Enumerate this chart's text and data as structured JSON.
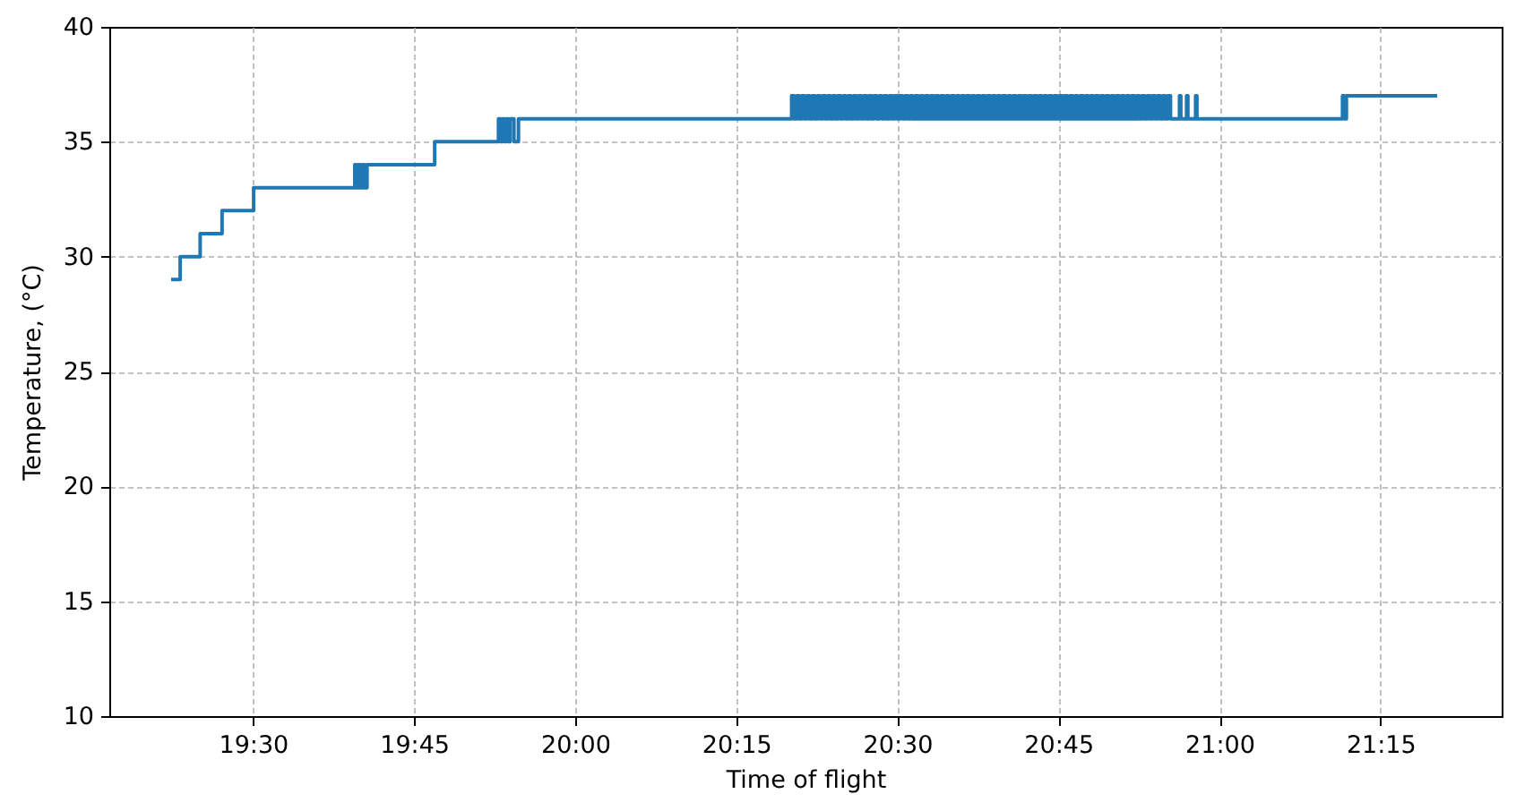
{
  "chart_data": {
    "type": "step",
    "xlabel": "Time of flight",
    "ylabel": "Temperature, (°C)",
    "xlim": [
      19.277,
      21.438
    ],
    "ylim": [
      10,
      40
    ],
    "xticks": [
      {
        "value": 19.5,
        "label": "19:30"
      },
      {
        "value": 19.75,
        "label": "19:45"
      },
      {
        "value": 20,
        "label": "20:00"
      },
      {
        "value": 20.25,
        "label": "20:15"
      },
      {
        "value": 20.5,
        "label": "20:30"
      },
      {
        "value": 20.75,
        "label": "20:45"
      },
      {
        "value": 21,
        "label": "21:00"
      },
      {
        "value": 21.25,
        "label": "21:15"
      }
    ],
    "yticks": [
      10,
      15,
      20,
      25,
      30,
      35,
      40
    ],
    "grid": true,
    "series": [
      {
        "color": "#1f77b4",
        "x": [
          19.373,
          19.387,
          19.418,
          19.452,
          19.501,
          19.658,
          19.661,
          19.664,
          19.667,
          19.67,
          19.673,
          19.677,
          19.782,
          19.881,
          19.884,
          19.887,
          19.89,
          19.893,
          19.896,
          19.899,
          19.905,
          19.912,
          20.336,
          20.34,
          20.344,
          20.348,
          20.352,
          20.356,
          20.36,
          20.364,
          20.368,
          20.372,
          20.376,
          20.38,
          20.384,
          20.388,
          20.392,
          20.396,
          20.4,
          20.404,
          20.408,
          20.412,
          20.416,
          20.42,
          20.424,
          20.428,
          20.432,
          20.436,
          20.44,
          20.444,
          20.448,
          20.452,
          20.456,
          20.46,
          20.464,
          20.468,
          20.472,
          20.476,
          20.48,
          20.484,
          20.488,
          20.492,
          20.496,
          20.5,
          20.504,
          20.508,
          20.512,
          20.516,
          20.52,
          20.524,
          20.528,
          20.532,
          20.536,
          20.54,
          20.544,
          20.548,
          20.552,
          20.556,
          20.56,
          20.564,
          20.568,
          20.572,
          20.576,
          20.58,
          20.584,
          20.588,
          20.592,
          20.596,
          20.6,
          20.604,
          20.608,
          20.612,
          20.616,
          20.62,
          20.624,
          20.628,
          20.632,
          20.636,
          20.64,
          20.644,
          20.648,
          20.652,
          20.656,
          20.66,
          20.664,
          20.668,
          20.672,
          20.676,
          20.68,
          20.684,
          20.688,
          20.692,
          20.696,
          20.7,
          20.704,
          20.708,
          20.712,
          20.716,
          20.72,
          20.724,
          20.728,
          20.732,
          20.736,
          20.74,
          20.744,
          20.748,
          20.752,
          20.756,
          20.76,
          20.764,
          20.768,
          20.772,
          20.776,
          20.78,
          20.784,
          20.788,
          20.792,
          20.796,
          20.8,
          20.804,
          20.808,
          20.812,
          20.816,
          20.82,
          20.824,
          20.828,
          20.832,
          20.836,
          20.84,
          20.844,
          20.848,
          20.852,
          20.856,
          20.86,
          20.864,
          20.868,
          20.872,
          20.876,
          20.88,
          20.884,
          20.888,
          20.892,
          20.896,
          20.9,
          20.904,
          20.908,
          20.912,
          20.916,
          20.92,
          20.924,
          20.938,
          20.94,
          20.949,
          20.951,
          20.963,
          20.965,
          21.191,
          21.194,
          21.197,
          21.338
        ],
        "values": [
          29,
          30,
          31,
          32,
          33,
          34,
          33,
          34,
          33,
          34,
          33,
          34,
          35,
          36,
          35,
          36,
          35,
          36,
          35,
          36,
          35,
          36,
          37,
          36,
          37,
          36,
          37,
          36,
          37,
          36,
          37,
          36,
          37,
          36,
          37,
          36,
          37,
          36,
          37,
          36,
          37,
          36,
          37,
          36,
          37,
          36,
          37,
          36,
          37,
          36,
          37,
          36,
          37,
          36,
          37,
          36,
          37,
          36,
          37,
          36,
          37,
          36,
          37,
          36,
          37,
          36,
          37,
          36,
          37,
          36,
          37,
          36,
          37,
          36,
          37,
          36,
          37,
          36,
          37,
          36,
          37,
          36,
          37,
          36,
          37,
          36,
          37,
          36,
          37,
          36,
          37,
          36,
          37,
          36,
          37,
          36,
          37,
          36,
          37,
          36,
          37,
          36,
          37,
          36,
          37,
          36,
          37,
          36,
          37,
          36,
          37,
          36,
          37,
          36,
          37,
          36,
          37,
          36,
          37,
          36,
          37,
          36,
          37,
          36,
          37,
          36,
          37,
          36,
          37,
          36,
          37,
          36,
          37,
          36,
          37,
          36,
          37,
          36,
          37,
          36,
          37,
          36,
          37,
          36,
          37,
          36,
          37,
          36,
          37,
          36,
          37,
          36,
          37,
          36,
          37,
          36,
          37,
          36,
          37,
          36,
          37,
          36,
          37,
          36,
          37,
          36,
          37,
          36,
          37,
          36,
          37,
          36,
          37,
          36,
          37,
          36,
          37,
          36,
          37,
          37
        ]
      }
    ]
  }
}
